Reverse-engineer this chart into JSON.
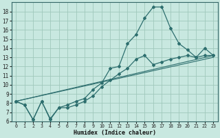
{
  "xlabel": "Humidex (Indice chaleur)",
  "bg_color": "#c8e8e0",
  "grid_color": "#a0c8bc",
  "line_color": "#2d6e6e",
  "xlim": [
    -0.5,
    23.5
  ],
  "ylim": [
    6,
    19
  ],
  "xticks": [
    0,
    1,
    2,
    3,
    4,
    5,
    6,
    7,
    8,
    9,
    10,
    11,
    12,
    13,
    14,
    15,
    16,
    17,
    18,
    19,
    20,
    21,
    22,
    23
  ],
  "yticks": [
    6,
    7,
    8,
    9,
    10,
    11,
    12,
    13,
    14,
    15,
    16,
    17,
    18
  ],
  "curve1_x": [
    0,
    1,
    2,
    3,
    4,
    5,
    6,
    7,
    8,
    9,
    10,
    11,
    12,
    13,
    14,
    15,
    16,
    17,
    18,
    19,
    20,
    21,
    22,
    23
  ],
  "curve1_y": [
    8.2,
    7.8,
    6.2,
    8.2,
    6.2,
    7.5,
    7.8,
    8.2,
    8.5,
    9.5,
    10.2,
    11.8,
    12.0,
    14.5,
    15.5,
    17.3,
    18.5,
    18.5,
    16.2,
    14.5,
    13.8,
    13.0,
    14.0,
    13.2
  ],
  "line2_x": [
    0,
    1,
    2,
    3,
    4,
    5,
    6,
    7,
    8,
    9,
    10,
    11,
    12,
    13,
    14,
    15,
    16,
    17,
    18,
    19,
    20,
    21,
    22,
    23
  ],
  "line2_y": [
    8.2,
    7.8,
    6.2,
    8.2,
    6.3,
    7.5,
    7.5,
    7.8,
    8.2,
    8.8,
    9.8,
    10.5,
    11.2,
    11.8,
    12.8,
    13.2,
    12.2,
    12.5,
    12.8,
    13.0,
    13.2,
    13.0,
    13.2,
    13.2
  ],
  "line3_x": [
    0,
    23
  ],
  "line3_y": [
    8.2,
    13.2
  ],
  "line4_x": [
    0,
    23
  ],
  "line4_y": [
    8.2,
    13.0
  ]
}
